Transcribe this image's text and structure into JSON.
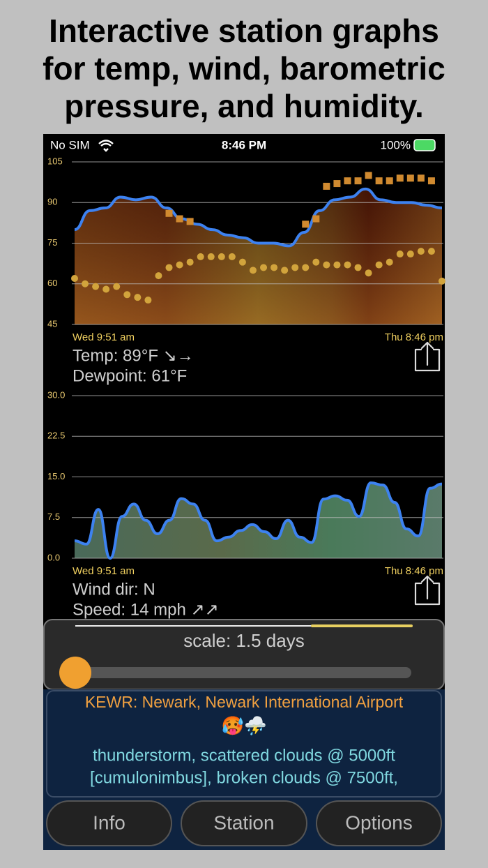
{
  "headline": [
    "Interactive station graphs",
    "for temp, wind, barometric",
    "pressure, and humidity."
  ],
  "status_bar": {
    "carrier": "No SIM",
    "time": "8:46 PM",
    "battery": "100%"
  },
  "chart_data": [
    {
      "type": "line",
      "ylim": [
        45,
        105
      ],
      "yticks": [
        45,
        60,
        75,
        90,
        105
      ],
      "grid": true,
      "x_start_label": "Wed 9:51 am",
      "x_end_label": "Thu 8:46 pm",
      "readout": [
        "Temp: 89°F ↘→",
        "Dewpoint: 61°F"
      ],
      "series": [
        {
          "color": "#3d82f0",
          "marker": "line",
          "values": [
            80,
            87,
            88,
            92,
            91,
            92,
            88,
            84,
            82,
            80,
            78,
            77,
            75,
            75,
            74,
            79,
            87,
            91,
            92,
            95,
            91,
            90,
            90,
            89,
            88
          ]
        },
        {
          "color": "#d2a43c",
          "marker": "circle",
          "values": [
            62,
            60,
            59,
            58,
            59,
            56,
            55,
            54,
            63,
            66,
            67,
            68,
            70,
            70,
            70,
            70,
            68,
            65,
            66,
            66,
            65,
            66,
            66,
            68,
            67,
            67,
            67,
            66,
            64,
            67,
            68,
            71,
            71,
            72,
            72,
            61
          ]
        },
        {
          "color": "#d08a30",
          "marker": "square",
          "values": [
            null,
            null,
            null,
            null,
            null,
            null,
            null,
            null,
            null,
            86,
            84,
            83,
            null,
            null,
            null,
            null,
            null,
            null,
            null,
            null,
            null,
            null,
            82,
            84,
            96,
            97,
            98,
            98,
            100,
            98,
            98,
            99,
            99,
            99,
            98,
            null
          ]
        }
      ]
    },
    {
      "type": "area",
      "ylim": [
        0,
        30
      ],
      "yticks": [
        {
          "value": 0,
          "label": "0.0"
        },
        {
          "value": 7.5,
          "label": "7.5"
        },
        {
          "value": 15,
          "label": "15.0"
        },
        {
          "value": 22.5,
          "label": "22.5"
        },
        {
          "value": 30,
          "label": "30.0"
        }
      ],
      "grid": true,
      "x_start_label": "Wed 9:51 am",
      "x_end_label": "Thu 8:46 pm",
      "readout": [
        "Wind dir: N",
        "Speed: 14 mph ↗↗"
      ],
      "series": [
        {
          "color": "#3d82f0",
          "marker": "line",
          "values": [
            3.2,
            2.6,
            9,
            0,
            7.7,
            10,
            7,
            4.5,
            7,
            11,
            10,
            7,
            3.2,
            3.9,
            5.1,
            6.2,
            4.9,
            3.6,
            7,
            3.9,
            2.9,
            10.9,
            11.5,
            10.7,
            7.7,
            13.9,
            13.5,
            10.3,
            5.4,
            4.1,
            12.9,
            13.7
          ]
        }
      ]
    }
  ],
  "scale_control": {
    "label": "scale: 1.5 days"
  },
  "station": {
    "name": "KEWR: Newark, Newark International Airport",
    "emoji": "🥵⛈️",
    "conditions": [
      "thunderstorm, scattered clouds @ 5000ft",
      "[cumulonimbus], broken clouds @ 7500ft,"
    ]
  },
  "buttons": [
    "Info",
    "Station",
    "Options"
  ]
}
